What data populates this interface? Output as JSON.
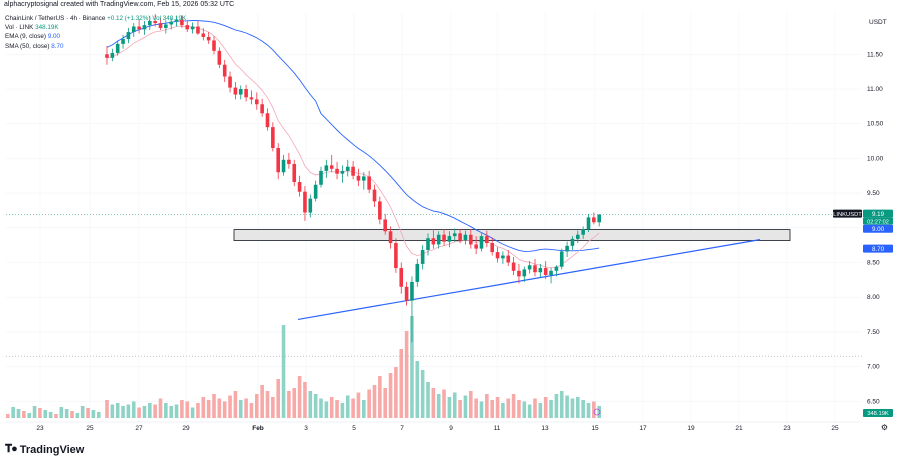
{
  "credit": "alphacryptosignal created with TradingView.com, Feb 15, 2026 05:32 UTC",
  "legend": {
    "symbol_line": "ChainLink / TetherUS · 4h · Binance",
    "change": "+0.12 (+1.32%)",
    "vol_label": "Vol · LINK",
    "vol_value": "348.19K",
    "vol_value_inline": "Vol 348.19K",
    "ema_label": "EMA (9, close)",
    "ema_value": "9.00",
    "sma_label": "SMA (50, close)",
    "sma_value": "8.70"
  },
  "colors": {
    "up": "#089981",
    "down": "#f23645",
    "vol_up": "#8fd3c7",
    "vol_down": "#f7a9a7",
    "ema": "#f2a7b6",
    "sma": "#2962ff",
    "trendline": "#2962ff",
    "zone_fill": "#e6e6e6",
    "badge_symbol": "#131722",
    "badge_ema": "#2962ff"
  },
  "brand": {
    "logo_icon": "tradingview-logo-icon",
    "name": "TradingView"
  },
  "price_axis": {
    "currency": "USDT",
    "ticks": [
      "11.50",
      "11.00",
      "10.50",
      "10.00",
      "9.50",
      "9.00",
      "8.50",
      "8.00",
      "7.50",
      "7.00",
      "6.50"
    ],
    "badges": [
      {
        "id": "symbol",
        "text": "LINKUSDT",
        "price": 9.19
      },
      {
        "id": "last",
        "text": "9.19",
        "sub": "02:27:02",
        "price": 9.19
      },
      {
        "id": "ema",
        "text": "9.00",
        "price": 9.0
      },
      {
        "id": "sma",
        "text": "8.70",
        "price": 8.7
      },
      {
        "id": "vol",
        "text": "348.19K",
        "price": 6.2
      }
    ]
  },
  "time_axis": {
    "labels": [
      "23",
      "25",
      "27",
      "29",
      "Feb",
      "3",
      "5",
      "7",
      "9",
      "11",
      "13",
      "15",
      "17",
      "19",
      "21",
      "23",
      "25"
    ]
  },
  "chart_data": {
    "type": "candlestick",
    "pair": "ChainLink / TetherUS",
    "timeframe": "4h",
    "exchange": "Binance",
    "y_range": [
      6.1,
      12.15
    ],
    "last_price": 9.19,
    "indicators": {
      "ema9": 9.0,
      "sma50": 8.7,
      "volume_last": "348.19K"
    },
    "support_zone": {
      "low": 8.86,
      "high": 8.96
    },
    "ascending_trendline": {
      "start": {
        "date": "Feb 1",
        "price": 7.68
      },
      "end": {
        "date": "Feb 22",
        "price": 8.83
      }
    },
    "horizontal_lines": [
      9.19,
      7.15
    ],
    "candles": [
      [
        11.5,
        11.62,
        11.35,
        11.45
      ],
      [
        11.45,
        11.58,
        11.4,
        11.52
      ],
      [
        11.52,
        11.7,
        11.48,
        11.65
      ],
      [
        11.65,
        11.78,
        11.58,
        11.72
      ],
      [
        11.72,
        11.88,
        11.66,
        11.82
      ],
      [
        11.82,
        11.95,
        11.75,
        11.9
      ],
      [
        11.9,
        12.0,
        11.8,
        11.86
      ],
      [
        11.86,
        11.98,
        11.78,
        11.92
      ],
      [
        11.92,
        12.05,
        11.85,
        11.98
      ],
      [
        11.98,
        12.08,
        11.9,
        11.95
      ],
      [
        11.95,
        12.02,
        11.85,
        11.88
      ],
      [
        11.88,
        11.99,
        11.8,
        11.93
      ],
      [
        11.93,
        12.02,
        11.86,
        11.97
      ],
      [
        11.97,
        12.05,
        11.9,
        12.0
      ],
      [
        12.0,
        12.06,
        11.88,
        11.92
      ],
      [
        11.92,
        11.99,
        11.82,
        11.86
      ],
      [
        11.86,
        11.96,
        11.8,
        11.9
      ],
      [
        11.9,
        11.98,
        11.78,
        11.8
      ],
      [
        11.8,
        11.88,
        11.7,
        11.75
      ],
      [
        11.75,
        11.82,
        11.65,
        11.7
      ],
      [
        11.7,
        11.76,
        11.5,
        11.55
      ],
      [
        11.55,
        11.6,
        11.3,
        11.35
      ],
      [
        11.35,
        11.42,
        11.1,
        11.18
      ],
      [
        11.18,
        11.25,
        10.95,
        11.02
      ],
      [
        11.02,
        11.1,
        10.85,
        10.92
      ],
      [
        10.92,
        11.05,
        10.85,
        11.0
      ],
      [
        11.0,
        11.06,
        10.82,
        10.88
      ],
      [
        10.88,
        10.98,
        10.78,
        10.85
      ],
      [
        10.85,
        10.95,
        10.7,
        10.78
      ],
      [
        10.78,
        10.86,
        10.6,
        10.65
      ],
      [
        10.65,
        10.72,
        10.4,
        10.45
      ],
      [
        10.45,
        10.52,
        10.1,
        10.15
      ],
      [
        10.15,
        10.22,
        9.7,
        9.8
      ],
      [
        9.8,
        10.05,
        9.75,
        9.98
      ],
      [
        9.98,
        10.08,
        9.85,
        9.92
      ],
      [
        9.92,
        9.98,
        9.6,
        9.66
      ],
      [
        9.66,
        9.75,
        9.45,
        9.52
      ],
      [
        9.52,
        9.6,
        9.1,
        9.22
      ],
      [
        9.22,
        9.48,
        9.15,
        9.42
      ],
      [
        9.42,
        9.68,
        9.38,
        9.62
      ],
      [
        9.62,
        9.88,
        9.58,
        9.82
      ],
      [
        9.82,
        9.98,
        9.72,
        9.9
      ],
      [
        9.9,
        10.05,
        9.8,
        9.85
      ],
      [
        9.85,
        9.95,
        9.7,
        9.78
      ],
      [
        9.78,
        9.9,
        9.65,
        9.82
      ],
      [
        9.82,
        9.98,
        9.74,
        9.88
      ],
      [
        9.88,
        9.96,
        9.7,
        9.75
      ],
      [
        9.75,
        9.85,
        9.6,
        9.68
      ],
      [
        9.68,
        9.8,
        9.55,
        9.74
      ],
      [
        9.74,
        9.82,
        9.5,
        9.55
      ],
      [
        9.55,
        9.62,
        9.3,
        9.38
      ],
      [
        9.38,
        9.45,
        9.05,
        9.12
      ],
      [
        9.12,
        9.2,
        8.9,
        8.95
      ],
      [
        8.95,
        9.02,
        8.7,
        8.78
      ],
      [
        8.78,
        8.85,
        8.35,
        8.42
      ],
      [
        8.42,
        8.5,
        8.05,
        8.15
      ],
      [
        8.15,
        8.22,
        7.88,
        7.95
      ],
      [
        7.95,
        8.3,
        7.35,
        8.22
      ],
      [
        8.22,
        8.55,
        8.15,
        8.48
      ],
      [
        8.48,
        8.75,
        8.4,
        8.68
      ],
      [
        8.68,
        8.92,
        8.6,
        8.85
      ],
      [
        8.85,
        8.98,
        8.7,
        8.76
      ],
      [
        8.76,
        8.95,
        8.7,
        8.9
      ],
      [
        8.9,
        8.98,
        8.74,
        8.8
      ],
      [
        8.8,
        8.95,
        8.72,
        8.88
      ],
      [
        8.88,
        8.99,
        8.8,
        8.92
      ],
      [
        8.92,
        8.98,
        8.78,
        8.82
      ],
      [
        8.82,
        8.96,
        8.76,
        8.9
      ],
      [
        8.9,
        8.98,
        8.7,
        8.76
      ],
      [
        8.76,
        8.88,
        8.62,
        8.7
      ],
      [
        8.7,
        8.92,
        8.66,
        8.88
      ],
      [
        8.88,
        8.96,
        8.72,
        8.78
      ],
      [
        8.78,
        8.86,
        8.6,
        8.65
      ],
      [
        8.65,
        8.72,
        8.5,
        8.56
      ],
      [
        8.56,
        8.66,
        8.48,
        8.6
      ],
      [
        8.6,
        8.68,
        8.45,
        8.5
      ],
      [
        8.5,
        8.58,
        8.32,
        8.38
      ],
      [
        8.38,
        8.48,
        8.2,
        8.3
      ],
      [
        8.3,
        8.44,
        8.22,
        8.4
      ],
      [
        8.4,
        8.52,
        8.34,
        8.46
      ],
      [
        8.46,
        8.55,
        8.3,
        8.36
      ],
      [
        8.36,
        8.48,
        8.28,
        8.42
      ],
      [
        8.42,
        8.52,
        8.26,
        8.32
      ],
      [
        8.32,
        8.42,
        8.2,
        8.38
      ],
      [
        8.38,
        8.46,
        8.3,
        8.44
      ],
      [
        8.44,
        8.7,
        8.4,
        8.66
      ],
      [
        8.66,
        8.8,
        8.58,
        8.74
      ],
      [
        8.74,
        8.88,
        8.68,
        8.84
      ],
      [
        8.84,
        8.96,
        8.78,
        8.9
      ],
      [
        8.9,
        9.02,
        8.84,
        8.98
      ],
      [
        8.98,
        9.2,
        8.94,
        9.15
      ],
      [
        9.15,
        9.22,
        9.05,
        9.08
      ],
      [
        9.08,
        9.2,
        9.02,
        9.19
      ]
    ],
    "volumes": [
      1.2,
      0.9,
      1.0,
      0.8,
      0.9,
      1.1,
      0.7,
      0.8,
      1.0,
      0.9,
      1.3,
      1.0,
      0.8,
      0.9,
      1.2,
      1.1,
      0.7,
      1.0,
      1.4,
      1.2,
      1.6,
      1.3,
      1.1,
      1.5,
      1.8,
      1.2,
      1.3,
      1.0,
      1.6,
      2.2,
      1.8,
      1.4,
      2.6,
      6.2,
      1.8,
      2.0,
      2.8,
      2.4,
      1.8,
      1.6,
      1.3,
      1.1,
      1.4,
      1.2,
      1.0,
      1.5,
      1.3,
      1.7,
      1.2,
      1.9,
      2.2,
      2.8,
      2.0,
      3.0,
      3.4,
      4.6,
      5.8,
      6.8,
      3.8,
      3.2,
      2.4,
      2.0,
      1.6,
      1.9,
      1.4,
      1.7,
      1.2,
      1.5,
      1.8,
      1.3,
      1.1,
      1.6,
      1.2,
      1.4,
      1.0,
      1.3,
      1.6,
      1.2,
      1.1,
      0.9,
      1.3,
      1.0,
      1.4,
      1.2,
      1.6,
      1.8,
      1.5,
      1.3,
      1.4,
      1.2,
      1.0,
      1.1,
      0.8
    ]
  }
}
